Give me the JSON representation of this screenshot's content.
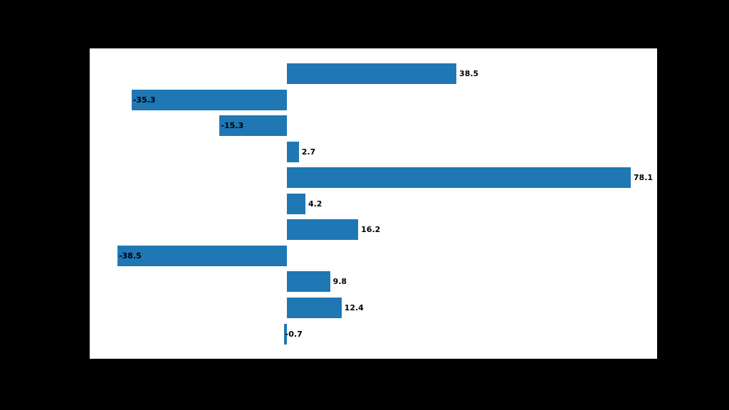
{
  "chart_data": {
    "type": "bar",
    "orientation": "horizontal",
    "title": "",
    "xlabel": "",
    "ylabel": "",
    "values": [
      38.5,
      -35.3,
      -15.3,
      2.7,
      78.1,
      4.2,
      16.2,
      -38.5,
      9.8,
      12.4,
      -0.7
    ],
    "bar_labels": [
      "38.5",
      "-35.3",
      "-15.3",
      "2.7",
      "78.1",
      "4.2",
      "16.2",
      "-38.5",
      "9.8",
      "12.4",
      "-0.7"
    ],
    "xlim": [
      -44.8,
      84.1
    ],
    "grid": false,
    "legend": false,
    "tick_labels_visible": false,
    "colors": {
      "bar": "#1f77b4",
      "plot_background": "#ffffff",
      "figure_background": "#000000",
      "label_text": "#000000"
    }
  }
}
